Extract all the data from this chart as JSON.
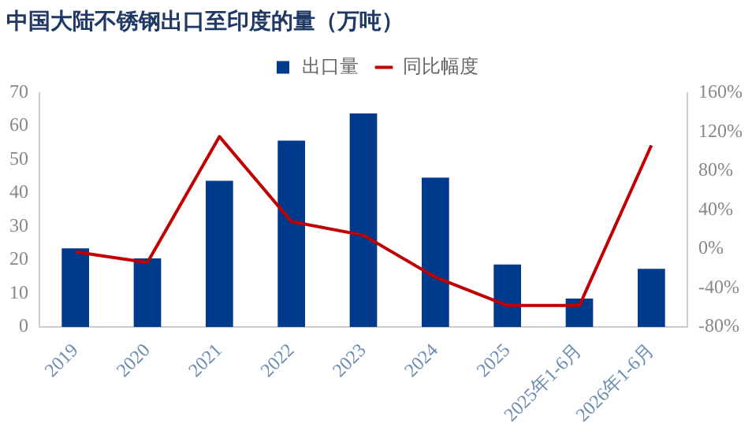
{
  "chart_data": {
    "type": "bar",
    "title": "中国大陆不锈钢出口至印度的量（万吨）",
    "categories": [
      "2019",
      "2020",
      "2021",
      "2022",
      "2023",
      "2024",
      "2025",
      "2025年1-6月",
      "2026年1-6月"
    ],
    "series": [
      {
        "name": "出口量",
        "color": "#003a8c",
        "values": [
          23.5,
          20.5,
          43.7,
          55.7,
          63.8,
          44.6,
          18.7,
          8.5,
          17.4
        ]
      },
      {
        "name": "同比幅度",
        "type": "line",
        "axis": "y2",
        "color": "#c00000",
        "values": [
          -3,
          -14,
          115,
          28,
          14,
          -29,
          -58,
          -58,
          106
        ]
      }
    ],
    "ylim": [
      0,
      70
    ],
    "yticks": [
      0,
      10,
      20,
      30,
      40,
      50,
      60,
      70
    ],
    "y2lim": [
      -80,
      160
    ],
    "y2ticks": [
      {
        "value": -80,
        "label": "-80%"
      },
      {
        "value": -40,
        "label": "-40%"
      },
      {
        "value": 0,
        "label": "0%"
      },
      {
        "value": 40,
        "label": "40%"
      },
      {
        "value": 80,
        "label": "80%"
      },
      {
        "value": 120,
        "label": "120%"
      },
      {
        "value": 160,
        "label": "160%"
      }
    ],
    "grid": false,
    "legend": "top",
    "marker": "none"
  }
}
